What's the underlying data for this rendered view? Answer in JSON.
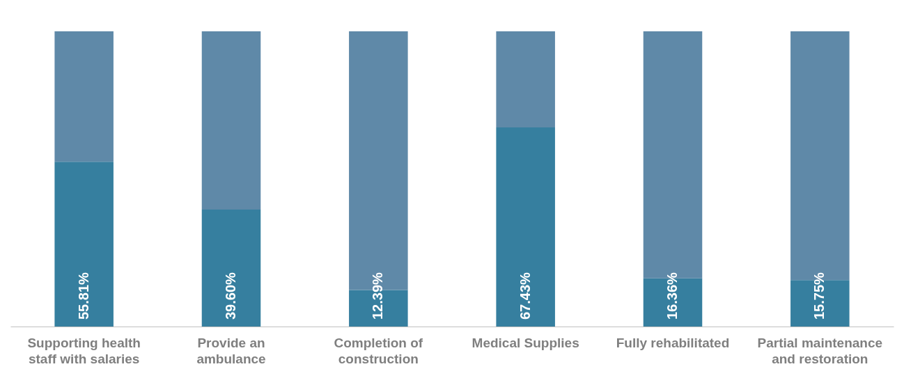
{
  "chart_data": {
    "type": "bar",
    "stacked": true,
    "categories": [
      "Supporting health staff with salaries",
      "Provide an ambulance",
      "Completion of construction",
      "Medical Supplies",
      "Fully rehabilitated",
      "Partial maintenance and restoration"
    ],
    "series": [
      {
        "color": "#367f9f",
        "values": [
          55.81,
          39.6,
          12.39,
          67.43,
          16.36,
          15.75
        ],
        "value_labels": [
          "55.81%",
          "39.60%",
          "12.39%",
          "67.43%",
          "16.36%",
          "15.75%"
        ]
      },
      {
        "color": "#5f89a8",
        "values": [
          44.19,
          60.4,
          87.61,
          32.57,
          83.64,
          84.25
        ]
      }
    ],
    "grid": false,
    "tick_labels": "x"
  }
}
